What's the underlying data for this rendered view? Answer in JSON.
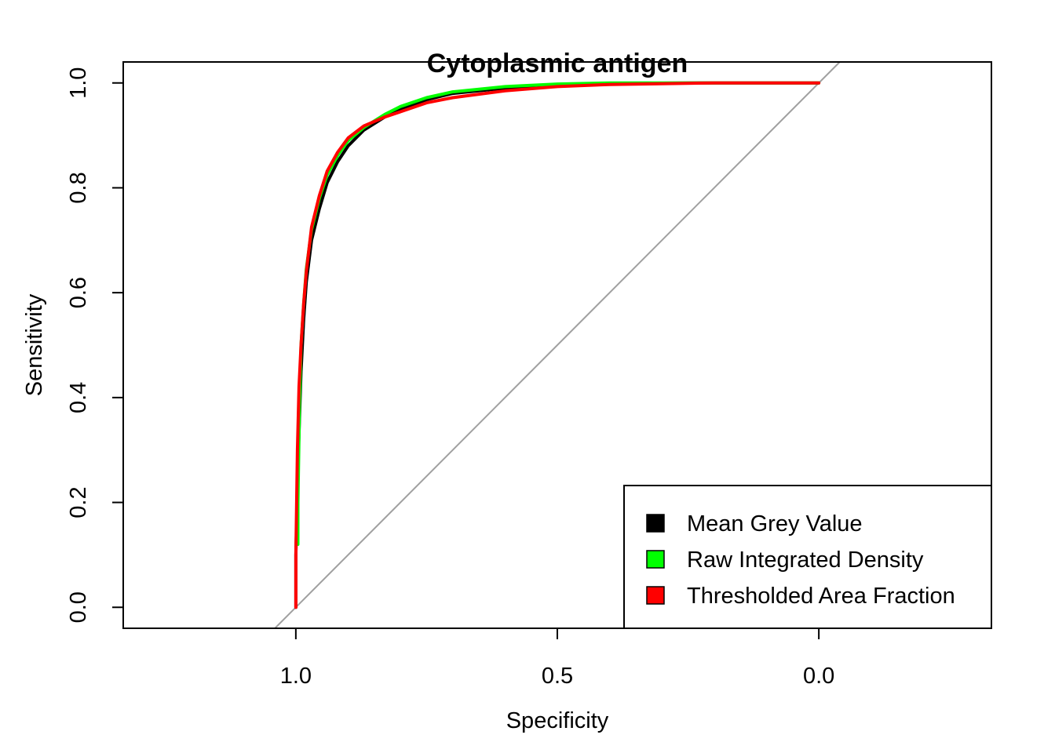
{
  "chart_data": {
    "type": "line",
    "title": "Cytoplasmic antigen",
    "xlabel": "Specificity",
    "ylabel": "Sensitivity",
    "xlim": [
      1.33,
      -0.33
    ],
    "ylim": [
      -0.04,
      1.04
    ],
    "x_reversed": true,
    "x_ticks": [
      1.0,
      0.5,
      0.0
    ],
    "x_tick_labels": [
      "1.0",
      "0.5",
      "0.0"
    ],
    "y_ticks": [
      0.0,
      0.2,
      0.4,
      0.6,
      0.8,
      1.0
    ],
    "y_tick_labels": [
      "0.0",
      "0.2",
      "0.4",
      "0.6",
      "0.8",
      "1.0"
    ],
    "grid": false,
    "reference_line": {
      "description": "chance diagonal",
      "color": "#a0a0a0",
      "points": [
        [
          1,
          0
        ],
        [
          0,
          1
        ]
      ]
    },
    "legend": {
      "position": "bottom-right",
      "entries": [
        {
          "label": "Mean Grey Value",
          "color": "#000000"
        },
        {
          "label": "Raw Integrated Density",
          "color": "#00ff00"
        },
        {
          "label": "Thresholded Area Fraction",
          "color": "#ff0000"
        }
      ]
    },
    "series": [
      {
        "name": "Mean Grey Value",
        "color": "#000000",
        "x": [
          1.0,
          1.0,
          0.995,
          0.99,
          0.985,
          0.98,
          0.97,
          0.955,
          0.94,
          0.92,
          0.9,
          0.87,
          0.83,
          0.8,
          0.75,
          0.7,
          0.6,
          0.5,
          0.4,
          0.2,
          0.0
        ],
        "y": [
          0.0,
          0.1,
          0.3,
          0.45,
          0.55,
          0.62,
          0.7,
          0.76,
          0.81,
          0.85,
          0.88,
          0.91,
          0.935,
          0.95,
          0.968,
          0.98,
          0.99,
          0.996,
          0.999,
          1.0,
          1.0
        ]
      },
      {
        "name": "Raw Integrated Density",
        "color": "#00ff00",
        "x": [
          0.996,
          0.996,
          0.993,
          0.99,
          0.985,
          0.98,
          0.97,
          0.955,
          0.94,
          0.92,
          0.9,
          0.87,
          0.83,
          0.8,
          0.75,
          0.7,
          0.6,
          0.5,
          0.4,
          0.2,
          0.0
        ],
        "y": [
          0.12,
          0.2,
          0.38,
          0.5,
          0.58,
          0.645,
          0.72,
          0.78,
          0.825,
          0.862,
          0.89,
          0.915,
          0.94,
          0.955,
          0.972,
          0.983,
          0.993,
          0.998,
          1.0,
          1.0,
          1.0
        ]
      },
      {
        "name": "Thresholded Area Fraction",
        "color": "#ff0000",
        "x": [
          1.0,
          1.0,
          0.997,
          0.994,
          0.99,
          0.985,
          0.98,
          0.97,
          0.955,
          0.94,
          0.92,
          0.9,
          0.87,
          0.83,
          0.8,
          0.75,
          0.7,
          0.6,
          0.5,
          0.4,
          0.2,
          0.0
        ],
        "y": [
          0.0,
          0.1,
          0.3,
          0.42,
          0.5,
          0.58,
          0.64,
          0.725,
          0.785,
          0.832,
          0.868,
          0.895,
          0.918,
          0.935,
          0.945,
          0.962,
          0.972,
          0.985,
          0.993,
          0.997,
          1.0,
          1.0
        ]
      }
    ]
  }
}
